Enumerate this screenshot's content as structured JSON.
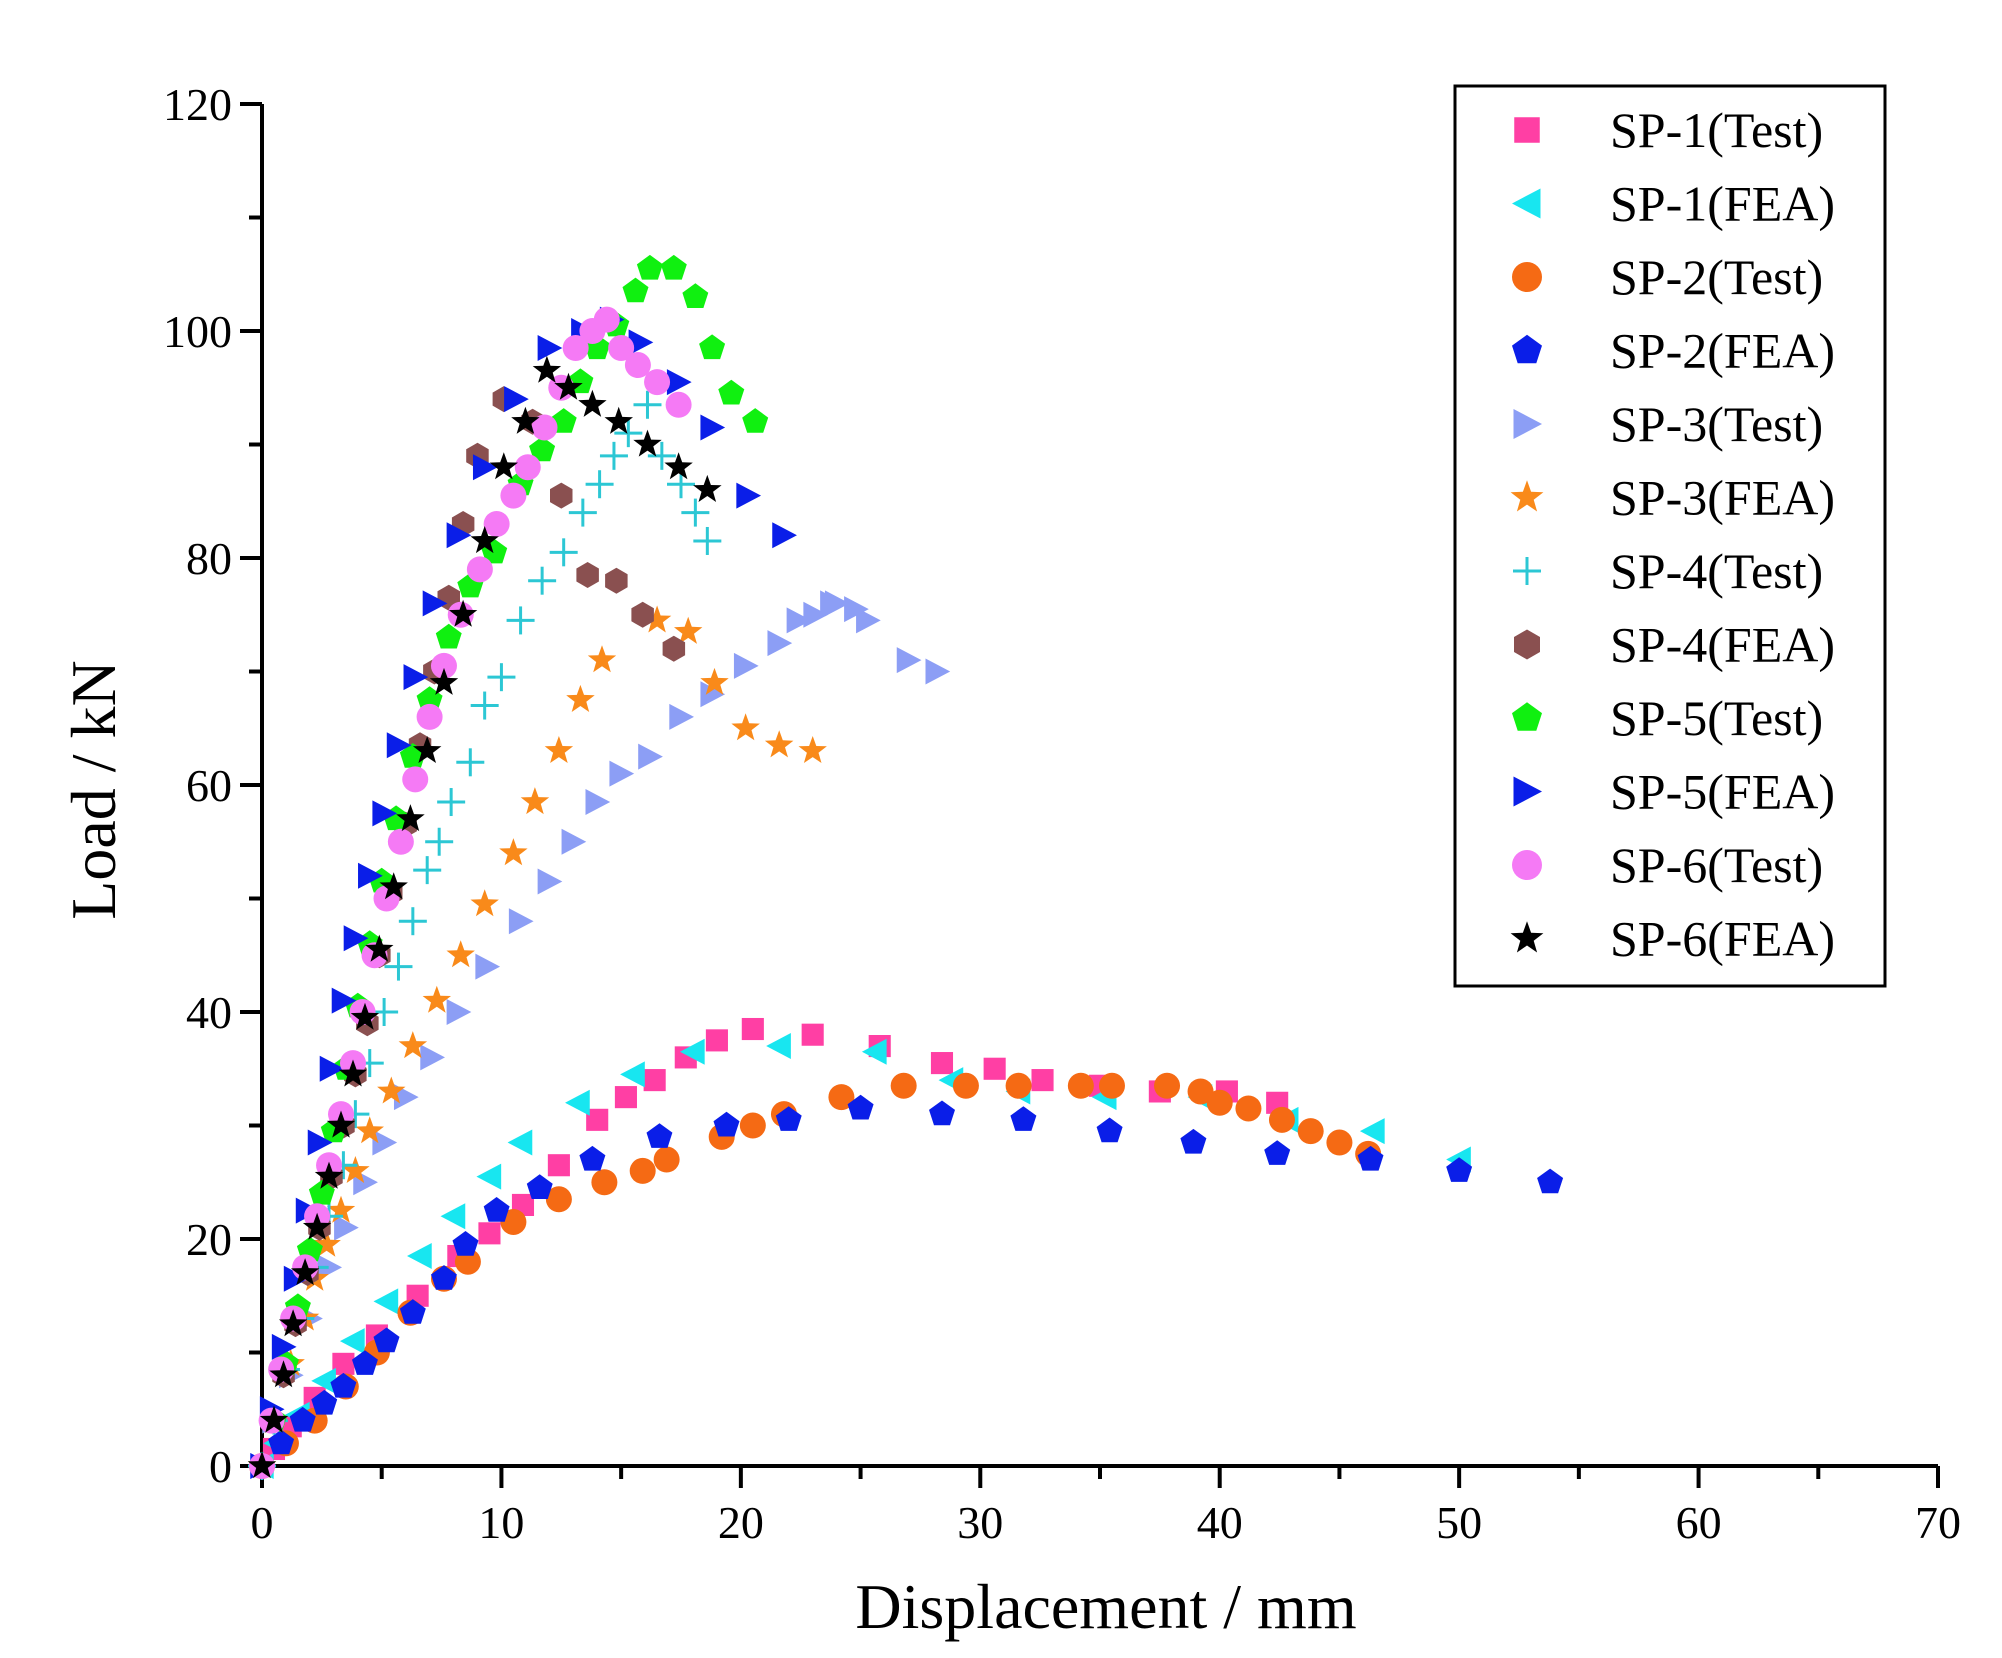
{
  "chart_data": {
    "type": "scatter",
    "xlabel": "Displacement / mm",
    "ylabel": "Load / kN",
    "xlim": [
      0,
      70
    ],
    "ylim": [
      0,
      120
    ],
    "xticks": [
      0,
      10,
      20,
      30,
      40,
      50,
      60,
      70
    ],
    "yticks": [
      0,
      20,
      40,
      60,
      80,
      100,
      120
    ],
    "grid": false,
    "legend_position": "top-right",
    "series": [
      {
        "name": "SP-1(Test)",
        "marker": "square",
        "color": "#ff3fa4",
        "x": [
          0,
          0.5,
          1.2,
          2.2,
          3.4,
          4.8,
          6.5,
          8.2,
          9.5,
          10.9,
          12.4,
          14.0,
          15.2,
          16.4,
          17.7,
          19.0,
          20.5,
          23.0,
          25.8,
          28.4,
          30.6,
          32.6,
          35.0,
          37.5,
          40.3,
          42.4
        ],
        "y": [
          0,
          1.5,
          3.5,
          6.0,
          9.0,
          11.5,
          15.0,
          18.5,
          20.5,
          23.0,
          26.5,
          30.5,
          32.5,
          34.0,
          36.0,
          37.5,
          38.5,
          38.0,
          37.0,
          35.5,
          35.0,
          34.0,
          33.5,
          33.0,
          33.0,
          32.0
        ]
      },
      {
        "name": "SP-1(FEA)",
        "marker": "tri-left",
        "color": "#18e6f0",
        "x": [
          0,
          0.6,
          1.5,
          2.6,
          3.8,
          5.2,
          6.6,
          8.0,
          9.5,
          10.8,
          13.2,
          15.5,
          18.0,
          21.6,
          25.6,
          28.8,
          31.6,
          35.2,
          39.2,
          42.8,
          46.4,
          50.0
        ],
        "y": [
          0,
          2.0,
          4.5,
          7.5,
          11.0,
          14.5,
          18.5,
          22.0,
          25.5,
          28.5,
          32.0,
          34.5,
          36.5,
          37.0,
          36.5,
          34.0,
          33.0,
          32.5,
          32.5,
          30.5,
          29.5,
          27.0
        ]
      },
      {
        "name": "SP-2(Test)",
        "marker": "circle",
        "color": "#f56a14",
        "x": [
          0,
          1.0,
          2.2,
          3.5,
          4.8,
          6.2,
          7.6,
          8.6,
          10.5,
          12.4,
          14.3,
          15.9,
          16.9,
          19.2,
          20.5,
          21.8,
          24.2,
          26.8,
          29.4,
          31.6,
          34.2,
          35.5,
          37.8,
          39.2,
          40.0,
          41.2,
          42.6,
          43.8,
          45.0,
          46.2
        ],
        "y": [
          0,
          2.0,
          4.0,
          7.0,
          10.0,
          13.5,
          16.5,
          18.0,
          21.5,
          23.5,
          25.0,
          26.0,
          27.0,
          29.0,
          30.0,
          31.0,
          32.5,
          33.5,
          33.5,
          33.5,
          33.5,
          33.5,
          33.5,
          33.0,
          32.0,
          31.5,
          30.5,
          29.5,
          28.5,
          27.5
        ]
      },
      {
        "name": "SP-2(FEA)",
        "marker": "pentagon",
        "color": "#0a1ee8",
        "x": [
          0,
          0.8,
          1.7,
          2.6,
          3.4,
          4.3,
          5.2,
          6.3,
          7.6,
          8.5,
          9.8,
          11.6,
          13.8,
          16.6,
          19.4,
          22.0,
          25.0,
          28.4,
          31.8,
          35.4,
          38.9,
          42.4,
          46.3,
          50.0,
          53.8
        ],
        "y": [
          0,
          2.0,
          4.0,
          5.5,
          7.0,
          9.0,
          11.0,
          13.5,
          16.5,
          19.5,
          22.5,
          24.5,
          27.0,
          29.0,
          30.0,
          30.5,
          31.5,
          31.0,
          30.5,
          29.5,
          28.5,
          27.5,
          27.0,
          26.0,
          25.0
        ]
      },
      {
        "name": "SP-3(Test)",
        "marker": "tri-right",
        "color": "#8c9ef5",
        "x": [
          0,
          0.5,
          1.2,
          2.0,
          2.8,
          3.5,
          4.3,
          5.1,
          6.0,
          7.1,
          8.2,
          9.4,
          10.8,
          12.0,
          13.0,
          14.0,
          15.0,
          16.2,
          17.5,
          18.8,
          20.2,
          21.6,
          22.4,
          23.1,
          23.8,
          24.0,
          24.8,
          25.3,
          27.0,
          28.2
        ],
        "y": [
          0,
          4.0,
          8.0,
          13.0,
          17.5,
          21.0,
          25.0,
          28.5,
          32.5,
          36.0,
          40.0,
          44.0,
          48.0,
          51.5,
          55.0,
          58.5,
          61.0,
          62.5,
          66.0,
          68.0,
          70.5,
          72.5,
          74.5,
          75.0,
          76.0,
          76.0,
          75.5,
          74.5,
          71.0,
          70.0
        ]
      },
      {
        "name": "SP-3(FEA)",
        "marker": "star",
        "color": "#f98a1a",
        "x": [
          0,
          0.5,
          1.2,
          1.8,
          2.2,
          2.7,
          3.3,
          3.9,
          4.5,
          5.4,
          6.3,
          7.3,
          8.3,
          9.3,
          10.5,
          11.4,
          12.4,
          13.3,
          14.2,
          16.5,
          17.8,
          18.9,
          20.2,
          21.6,
          23.0
        ],
        "y": [
          0,
          4.0,
          9.0,
          13.0,
          16.5,
          19.5,
          22.5,
          26.0,
          29.5,
          33.0,
          37.0,
          41.0,
          45.0,
          49.5,
          54.0,
          58.5,
          63.0,
          67.5,
          71.0,
          74.5,
          73.5,
          69.0,
          65.0,
          63.5,
          63.0
        ]
      },
      {
        "name": "SP-4(Test)",
        "marker": "plus",
        "color": "#2cc7d4",
        "x": [
          0,
          0.5,
          1.0,
          1.6,
          2.2,
          2.8,
          3.4,
          3.9,
          4.5,
          5.1,
          5.7,
          6.3,
          6.9,
          7.4,
          7.9,
          8.7,
          9.3,
          10.0,
          10.8,
          11.7,
          12.6,
          13.4,
          14.1,
          14.7,
          15.3,
          16.1,
          16.7,
          17.5,
          18.1,
          18.6
        ],
        "y": [
          0,
          4.0,
          8.5,
          13.0,
          17.5,
          22.0,
          26.5,
          31.0,
          35.5,
          40.0,
          44.0,
          48.0,
          52.5,
          55.0,
          58.5,
          62.0,
          67.0,
          69.5,
          74.5,
          78.0,
          80.5,
          84.0,
          86.5,
          89.0,
          91.0,
          93.5,
          89.0,
          86.5,
          84.0,
          81.5
        ]
      },
      {
        "name": "SP-4(FEA)",
        "marker": "hexagon",
        "color": "#8a5050",
        "x": [
          0,
          0.4,
          0.9,
          1.4,
          1.9,
          2.4,
          2.9,
          3.4,
          3.9,
          4.4,
          4.9,
          5.4,
          6.0,
          6.6,
          7.2,
          7.8,
          8.4,
          9.0,
          10.1,
          11.3,
          12.5,
          13.6,
          14.8,
          15.9,
          17.2
        ],
        "y": [
          0,
          4.0,
          8.0,
          12.5,
          17.0,
          21.0,
          25.5,
          30.0,
          34.5,
          39.0,
          45.0,
          50.5,
          56.5,
          63.5,
          70.0,
          76.5,
          83.0,
          89.0,
          94.0,
          92.0,
          85.5,
          78.5,
          78.0,
          75.0,
          72.0
        ]
      },
      {
        "name": "SP-5(Test)",
        "marker": "pentagon",
        "color": "#10f010",
        "x": [
          0,
          0.5,
          1.0,
          1.5,
          2.0,
          2.5,
          3.0,
          3.5,
          4.0,
          4.5,
          5.0,
          5.6,
          6.3,
          7.0,
          7.8,
          8.7,
          9.7,
          10.8,
          11.7,
          12.6,
          13.3,
          14.0,
          14.8,
          15.6,
          16.2,
          17.2,
          18.1,
          18.8,
          19.6,
          20.6
        ],
        "y": [
          0,
          4.0,
          9.0,
          14.0,
          19.0,
          24.0,
          29.5,
          35.0,
          40.5,
          46.0,
          51.5,
          57.0,
          62.5,
          67.5,
          73.0,
          77.5,
          80.5,
          86.5,
          89.5,
          92.0,
          95.5,
          98.5,
          100.5,
          103.5,
          105.5,
          105.5,
          103.0,
          98.5,
          94.5,
          92.0
        ]
      },
      {
        "name": "SP-5(FEA)",
        "marker": "tri-right",
        "color": "#0a1ee8",
        "x": [
          0,
          0.4,
          0.9,
          1.4,
          1.9,
          2.4,
          2.9,
          3.4,
          3.9,
          4.5,
          5.1,
          5.7,
          6.4,
          7.2,
          8.2,
          9.3,
          10.6,
          12.0,
          13.4,
          14.6,
          15.8,
          17.4,
          18.8,
          20.3,
          21.8
        ],
        "y": [
          0,
          5.0,
          10.5,
          16.5,
          22.5,
          28.5,
          35.0,
          41.0,
          46.5,
          52.0,
          57.5,
          63.5,
          69.5,
          76.0,
          82.0,
          88.0,
          94.0,
          98.5,
          100.0,
          101.0,
          99.0,
          95.5,
          91.5,
          85.5,
          82.0
        ]
      },
      {
        "name": "SP-6(Test)",
        "marker": "circle",
        "color": "#f57af5",
        "x": [
          0,
          0.4,
          0.8,
          1.3,
          1.8,
          2.3,
          2.8,
          3.3,
          3.8,
          4.2,
          4.7,
          5.2,
          5.8,
          6.4,
          7.0,
          7.6,
          8.3,
          9.1,
          9.8,
          10.5,
          11.1,
          11.8,
          12.5,
          13.1,
          13.8,
          14.4,
          15.0,
          15.7,
          16.5,
          17.4
        ],
        "y": [
          0,
          4.0,
          8.5,
          13.0,
          17.5,
          22.0,
          26.5,
          31.0,
          35.5,
          40.0,
          45.0,
          50.0,
          55.0,
          60.5,
          66.0,
          70.5,
          75.0,
          79.0,
          83.0,
          85.5,
          88.0,
          91.5,
          95.0,
          98.5,
          100.0,
          101.0,
          98.5,
          97.0,
          95.5,
          93.5
        ]
      },
      {
        "name": "SP-6(FEA)",
        "marker": "star",
        "color": "#000000",
        "x": [
          0,
          0.5,
          0.9,
          1.3,
          1.8,
          2.3,
          2.8,
          3.3,
          3.8,
          4.3,
          4.9,
          5.5,
          6.2,
          6.9,
          7.6,
          8.4,
          9.3,
          10.1,
          11.0,
          11.9,
          12.8,
          13.8,
          14.9,
          16.1,
          17.4,
          18.6
        ],
        "y": [
          0,
          4.0,
          8.0,
          12.5,
          17.0,
          21.0,
          25.5,
          30.0,
          34.5,
          39.5,
          45.5,
          51.0,
          57.0,
          63.0,
          69.0,
          75.0,
          81.5,
          88.0,
          92.0,
          96.5,
          95.0,
          93.5,
          92.0,
          90.0,
          88.0,
          86.0
        ]
      }
    ]
  }
}
